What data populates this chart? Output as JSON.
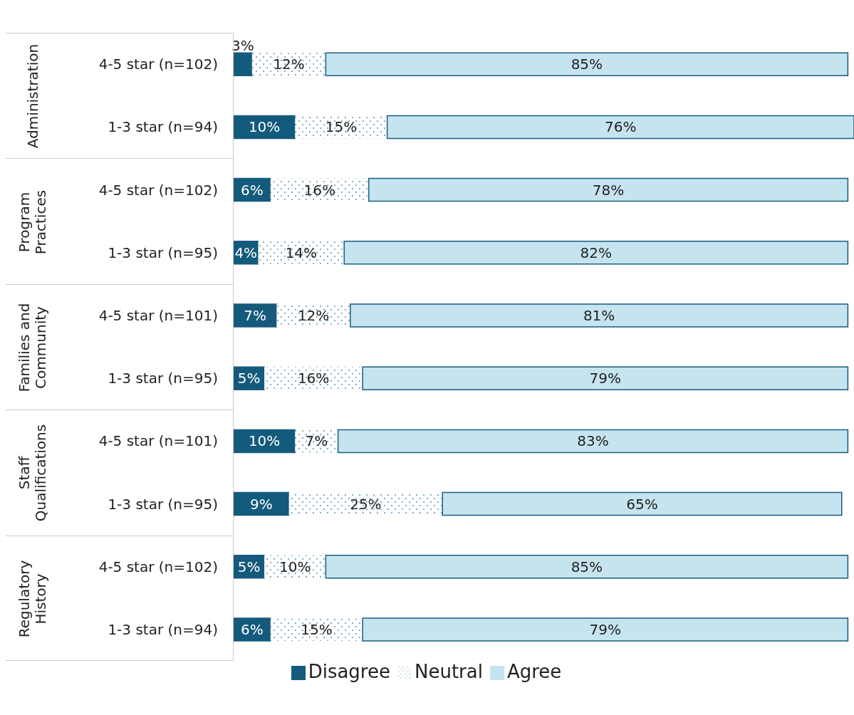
{
  "chart_data": {
    "type": "bar",
    "orientation": "horizontal",
    "stacked": true,
    "legend": "bottom",
    "categories": [
      "4-5 star (n=102)",
      "1-3 star (n=94)",
      "4-5 star (n=102)",
      "1-3 star (n=95)",
      "4-5 star (n=101)",
      "1-3 star (n=95)",
      "4-5 star (n=101)",
      "1-3 star (n=95)",
      "4-5 star (n=102)",
      "1-3 star (n=94)"
    ],
    "annotations": [
      "Administration",
      "Program Practices",
      "Families and Community",
      "Staff Qualifications",
      "Regulatory History"
    ],
    "series": [
      {
        "name": "Disagree",
        "color": "#135a7c",
        "values": [
          3,
          10,
          6,
          4,
          7,
          5,
          10,
          9,
          5,
          6
        ],
        "value_labels": [
          "3%",
          "10%",
          "6%",
          "4%",
          "7%",
          "5%",
          "10%",
          "9%",
          "5%",
          "6%"
        ]
      },
      {
        "name": "Neutral",
        "color": "#ffffff",
        "values": [
          12,
          15,
          16,
          14,
          12,
          16,
          7,
          25,
          10,
          15
        ],
        "value_labels": [
          "12%",
          "15%",
          "16%",
          "14%",
          "12%",
          "16%",
          "7%",
          "25%",
          "10%",
          "15%"
        ]
      },
      {
        "name": "Agree",
        "color": "#c5e4f0",
        "values": [
          85,
          76,
          78,
          82,
          81,
          79,
          83,
          65,
          85,
          79
        ],
        "value_labels": [
          "85%",
          "76%",
          "78%",
          "82%",
          "81%",
          "79%",
          "83%",
          "65%",
          "85%",
          "79%"
        ]
      }
    ]
  }
}
